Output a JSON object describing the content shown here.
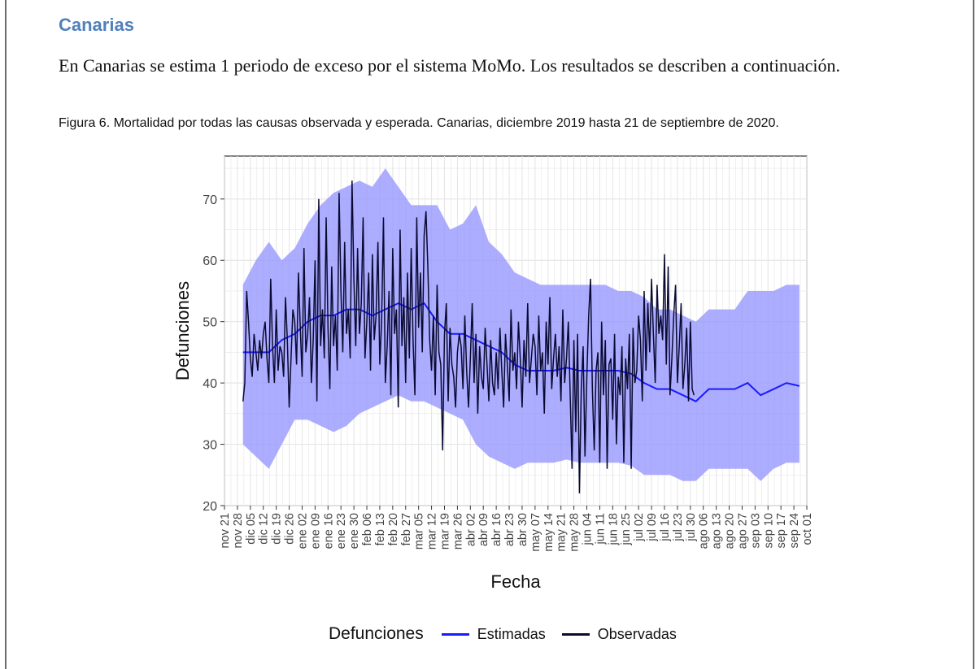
{
  "document": {
    "heading": "Canarias",
    "paragraph": "En Canarias se estima 1 periodo de exceso por el sistema MoMo. Los resultados se describen a continuación.",
    "figure_caption": "Figura 6. Mortalidad por todas las causas observada y esperada. Canarias, diciembre 2019 hasta 21 de septiembre de 2020."
  },
  "colors": {
    "estimadas": "#1a1aff",
    "observadas": "#0a0a33",
    "band": "#9999ff",
    "grid": "#e6e6e6"
  },
  "chart_data": {
    "type": "line",
    "xlabel": "Fecha",
    "ylabel": "Defunciones",
    "ylim": [
      20,
      77
    ],
    "yticks": [
      20,
      30,
      40,
      50,
      60,
      70
    ],
    "x_domain_days": [
      0,
      315
    ],
    "x_start_date": "2019-11-21",
    "x_end_date": "2020-09-22",
    "xtick_labels": [
      "nov 21",
      "nov 28",
      "dic 05",
      "dic 12",
      "dic 19",
      "dic 26",
      "ene 02",
      "ene 09",
      "ene 16",
      "ene 23",
      "ene 30",
      "feb 06",
      "feb 13",
      "feb 20",
      "feb 27",
      "mar 05",
      "mar 12",
      "mar 19",
      "mar 26",
      "abr 02",
      "abr 09",
      "abr 16",
      "abr 23",
      "abr 30",
      "may 07",
      "may 14",
      "may 21",
      "may 28",
      "jun 04",
      "jun 11",
      "jun 18",
      "jun 25",
      "jul 02",
      "jul 09",
      "jul 16",
      "jul 23",
      "jul 30",
      "ago 06",
      "ago 13",
      "ago 20",
      "ago 27",
      "sep 03",
      "sep 10",
      "sep 17",
      "sep 24",
      "oct 01"
    ],
    "legend": {
      "title": "Defunciones",
      "position": "bottom",
      "entries": [
        "Estimadas",
        "Observadas"
      ]
    },
    "series": [
      {
        "name": "Estimadas",
        "start_day": 10,
        "step_days": 7,
        "values": [
          45,
          45,
          45,
          47,
          48,
          50,
          51,
          51,
          52,
          52,
          51,
          52,
          53,
          52,
          53,
          50,
          48,
          48,
          47,
          46,
          45,
          43,
          42,
          42,
          42,
          42.5,
          42,
          42,
          42,
          42,
          41.5,
          40,
          39,
          39,
          38,
          37,
          39,
          39,
          39,
          40,
          38,
          39,
          40,
          39.5
        ]
      },
      {
        "name": "Banda inferior",
        "start_day": 10,
        "step_days": 7,
        "values": [
          30,
          28,
          26,
          30,
          34,
          34,
          33,
          32,
          33,
          35,
          36,
          37,
          38,
          37,
          37,
          36,
          35,
          34,
          30,
          28,
          27,
          26,
          27,
          27,
          27,
          27.5,
          27,
          27,
          27,
          27,
          26.5,
          25,
          25,
          25,
          24,
          24,
          26,
          26,
          26,
          26,
          24,
          26,
          27,
          27
        ]
      },
      {
        "name": "Banda superior",
        "start_day": 10,
        "step_days": 7,
        "values": [
          56,
          60,
          63,
          60,
          62,
          66,
          69,
          71,
          72,
          73,
          72,
          75,
          72,
          69,
          69,
          69,
          65,
          66,
          69,
          63,
          61,
          58,
          57,
          56,
          56,
          56,
          56,
          56,
          56,
          55,
          55,
          54,
          52,
          52,
          51,
          50,
          52,
          52,
          52,
          55,
          55,
          55,
          56,
          56
        ]
      },
      {
        "name": "Observadas",
        "start_day": 10,
        "step_days": 1,
        "values": [
          37,
          40,
          55,
          50,
          44,
          41,
          48,
          45,
          42,
          47,
          44,
          48,
          50,
          44,
          40,
          57,
          46,
          40,
          52,
          42,
          46,
          45,
          41,
          54,
          47,
          36,
          44,
          52,
          50,
          43,
          58,
          49,
          41,
          62,
          45,
          48,
          54,
          40,
          47,
          60,
          37,
          70,
          46,
          52,
          44,
          67,
          49,
          39,
          59,
          46,
          51,
          42,
          71,
          55,
          45,
          63,
          48,
          52,
          44,
          73,
          57,
          46,
          62,
          48,
          53,
          67,
          44,
          50,
          58,
          42,
          61,
          47,
          51,
          63,
          43,
          50,
          67,
          40,
          46,
          55,
          38,
          62,
          48,
          52,
          36,
          65,
          46,
          54,
          40,
          58,
          44,
          62,
          47,
          38,
          67,
          49,
          58,
          45,
          64,
          68,
          59,
          47,
          42,
          51,
          38,
          56,
          45,
          43,
          29,
          48,
          53,
          37,
          49,
          43,
          41,
          36,
          45,
          48,
          46,
          39,
          51,
          42,
          36,
          44,
          53,
          40,
          48,
          35,
          46,
          41,
          39,
          49,
          43,
          37,
          47,
          40,
          38,
          45,
          39,
          49,
          42,
          36,
          48,
          43,
          37,
          52,
          42,
          45,
          39,
          50,
          44,
          36,
          47,
          41,
          53,
          40,
          44,
          48,
          46,
          38,
          51,
          42,
          45,
          35,
          50,
          43,
          54,
          39,
          44,
          48,
          41,
          46,
          37,
          52,
          40,
          44,
          50,
          38,
          26,
          47,
          32,
          48,
          22,
          39,
          46,
          28,
          41,
          51,
          57,
          39,
          29,
          42,
          45,
          27,
          50,
          38,
          47,
          26,
          43,
          44,
          34,
          48,
          30,
          41,
          38,
          46,
          27,
          44,
          39,
          48,
          26,
          49,
          40,
          42,
          51,
          47,
          37,
          55,
          42,
          53,
          45,
          57,
          48,
          40,
          56,
          48,
          51,
          47,
          61,
          43,
          59,
          38,
          44,
          51,
          56,
          40,
          46,
          53,
          39,
          43,
          49,
          37,
          50,
          39,
          38
        ]
      }
    ]
  }
}
